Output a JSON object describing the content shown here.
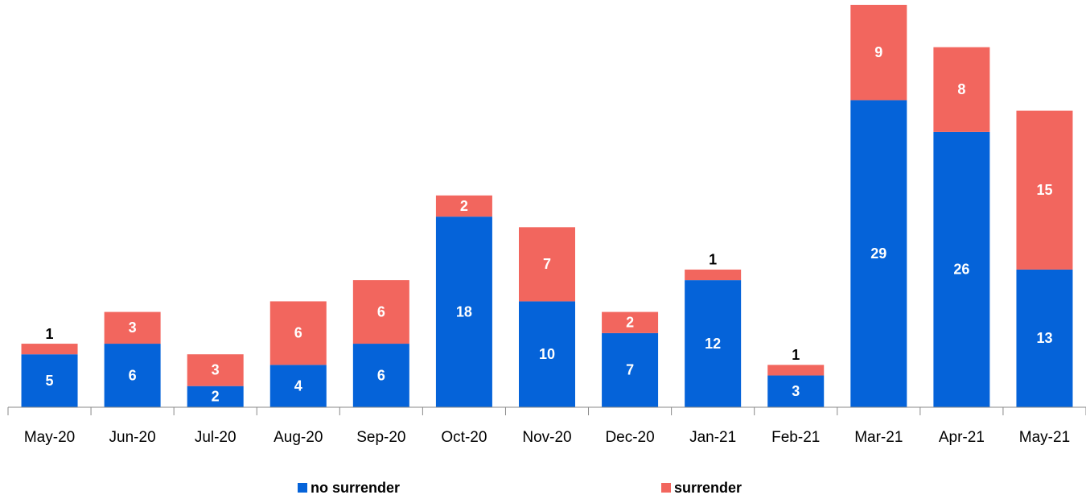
{
  "chart_data": {
    "type": "stacked_bar",
    "categories": [
      "May-20",
      "Jun-20",
      "Jul-20",
      "Aug-20",
      "Sep-20",
      "Oct-20",
      "Nov-20",
      "Dec-20",
      "Jan-21",
      "Feb-21",
      "Mar-21",
      "Apr-21",
      "May-21"
    ],
    "series": [
      {
        "name": "no surrender",
        "color": "#0563d9",
        "values": [
          5,
          6,
          2,
          4,
          6,
          18,
          10,
          7,
          12,
          3,
          29,
          26,
          13
        ]
      },
      {
        "name": "surrender",
        "color": "#f2665e",
        "values": [
          1,
          3,
          3,
          6,
          6,
          2,
          7,
          2,
          1,
          1,
          9,
          8,
          15
        ]
      }
    ],
    "legend": "bottom"
  }
}
